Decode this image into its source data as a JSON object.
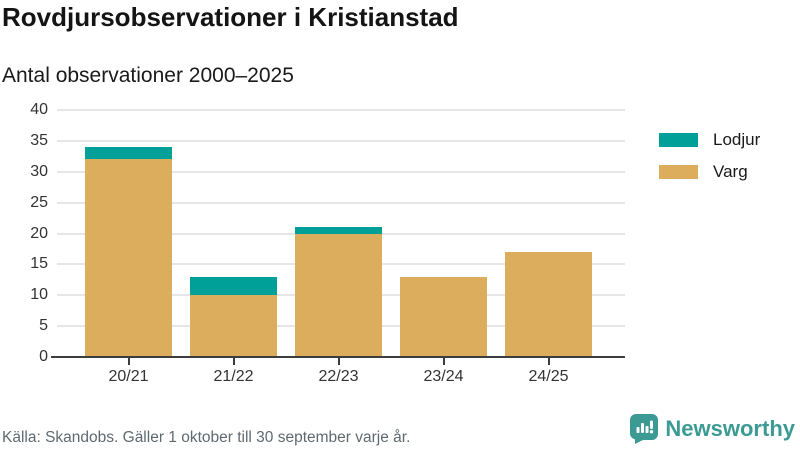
{
  "header": {
    "title": "Rovdjursobservationer i Kristianstad",
    "subtitle": "Antal observationer 2000–2025"
  },
  "chart_data": {
    "type": "bar",
    "stacked": true,
    "title": "Rovdjursobservationer i Kristianstad",
    "subtitle": "Antal observationer 2000–2025",
    "categories": [
      "20/21",
      "21/22",
      "22/23",
      "23/24",
      "24/25"
    ],
    "series": [
      {
        "name": "Lodjur",
        "color": "#00A098",
        "values": [
          2,
          3,
          1,
          0,
          0
        ]
      },
      {
        "name": "Varg",
        "color": "#DBAD5C",
        "values": [
          32,
          10,
          20,
          13,
          17
        ]
      }
    ],
    "totals": [
      34,
      13,
      21,
      13,
      17
    ],
    "xlabel": "",
    "ylabel": "",
    "ylim": [
      0,
      40
    ],
    "yticks": [
      0,
      5,
      10,
      15,
      20,
      25,
      30,
      35,
      40
    ],
    "grid": true,
    "legend_position": "right"
  },
  "legend": {
    "items": [
      {
        "label": "Lodjur",
        "color": "#00A098"
      },
      {
        "label": "Varg",
        "color": "#DBAD5C"
      }
    ]
  },
  "footer": {
    "source": "Källa: Skandobs. Gäller 1 oktober till 30 september varje år.",
    "brand": "Newsworthy"
  },
  "colors": {
    "lodjur": "#00A098",
    "varg": "#DBAD5C",
    "brand_teal": "#3B9B94",
    "gridline": "#E6E6E6",
    "axis": "#3D3D3D",
    "text_dark": "#141414",
    "text_axis": "#333333",
    "text_source": "#5F6A70"
  }
}
